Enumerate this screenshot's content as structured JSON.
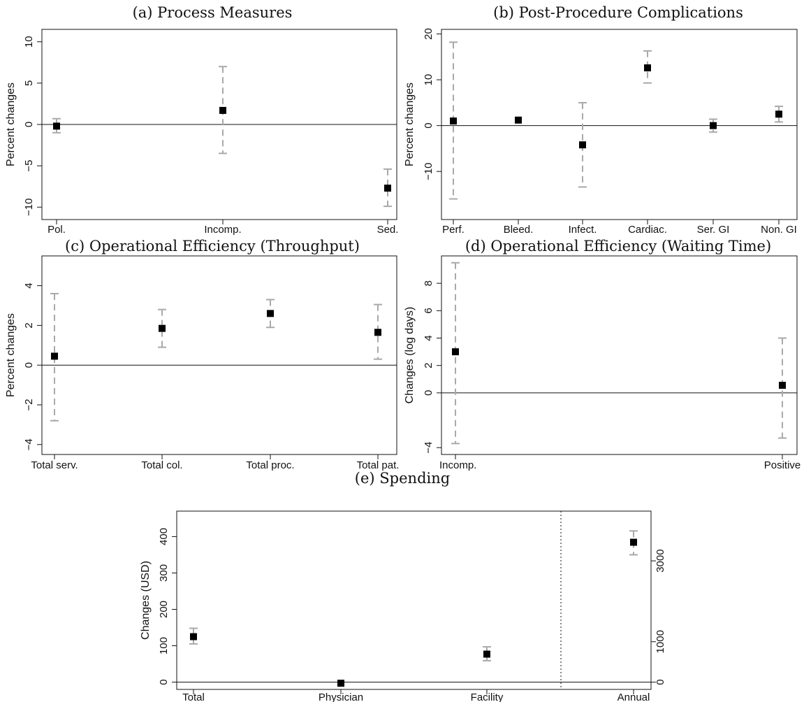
{
  "chart_data": [
    {
      "id": "a",
      "type": "scatter",
      "title": "(a) Process Measures",
      "ylabel": "Percent changes",
      "ylim": [
        -11.5,
        11.5
      ],
      "yticks": [
        -10,
        -5,
        0,
        5,
        10
      ],
      "categories": [
        "Pol.",
        "Incomp.",
        "Sed."
      ],
      "estimates": [
        -0.2,
        1.7,
        -7.7
      ],
      "ci_low": [
        -1.0,
        -3.5,
        -9.9
      ],
      "ci_high": [
        0.7,
        7.0,
        -5.4
      ],
      "zero_line": true
    },
    {
      "id": "b",
      "type": "scatter",
      "title": "(b) Post-Procedure Complications",
      "ylabel": "Percent changes",
      "ylim": [
        -20.5,
        21.0
      ],
      "yticks": [
        -10,
        0,
        10,
        20
      ],
      "categories": [
        "Perf.",
        "Bleed.",
        "Infect.",
        "Cardiac.",
        "Ser. GI",
        "Non. GI"
      ],
      "estimates": [
        1.0,
        1.2,
        -4.2,
        12.6,
        0.0,
        2.5
      ],
      "ci_low": [
        -16.0,
        null,
        -13.4,
        9.3,
        -1.4,
        0.8
      ],
      "ci_high": [
        18.2,
        null,
        5.0,
        16.3,
        1.4,
        4.2
      ],
      "zero_line": true
    },
    {
      "id": "c",
      "type": "scatter",
      "title": "(c) Operational Efficiency (Throughput)",
      "ylabel": "Percent changes",
      "ylim": [
        -4.5,
        5.5
      ],
      "yticks": [
        -4,
        -2,
        0,
        2,
        4
      ],
      "categories": [
        "Total serv.",
        "Total col.",
        "Total proc.",
        "Total pat."
      ],
      "estimates": [
        0.45,
        1.85,
        2.6,
        1.65
      ],
      "ci_low": [
        -2.8,
        0.9,
        1.9,
        0.3
      ],
      "ci_high": [
        3.6,
        2.8,
        3.3,
        3.05
      ],
      "zero_line": true
    },
    {
      "id": "d",
      "type": "scatter",
      "title": "(d) Operational Efficiency (Waiting Time)",
      "ylabel": "Changes (log days)",
      "ylim": [
        -4.5,
        10.0
      ],
      "yticks": [
        -4,
        0,
        2,
        4,
        6,
        8
      ],
      "categories": [
        "Incomp.",
        "Positive"
      ],
      "estimates": [
        3.0,
        0.55
      ],
      "ci_low": [
        -3.7,
        -3.3
      ],
      "ci_high": [
        9.5,
        4.0
      ],
      "zero_line": true
    },
    {
      "id": "e",
      "type": "scatter",
      "title": "(e) Spending",
      "ylabel": "Changes (USD)",
      "ylim": [
        -20,
        470
      ],
      "yticks": [
        0,
        100,
        200,
        300,
        400
      ],
      "right_axis": {
        "ylim": [
          -180,
          4230
        ],
        "ticks": [
          0,
          1000,
          3000
        ],
        "series": [
          "Annual"
        ]
      },
      "categories": [
        "Total",
        "Physician",
        "Facility",
        "Annual"
      ],
      "estimates": [
        125,
        -3,
        77,
        3460
      ],
      "ci_low": [
        105,
        null,
        59,
        3150
      ],
      "ci_high": [
        148,
        null,
        97,
        3740
      ],
      "divider_after": "Facility",
      "zero_line": true
    }
  ]
}
